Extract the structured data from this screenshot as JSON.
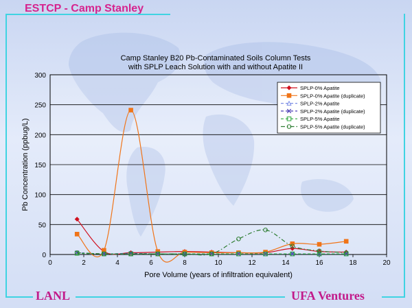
{
  "slide": {
    "header": "ESTCP - Camp Stanley",
    "footer_left": "LANL",
    "footer_right": "UFA Ventures",
    "colors": {
      "accent_text": "#d6238e",
      "frame_line": "#3fd3e2"
    }
  },
  "chart_data": {
    "type": "line",
    "title_line1": "Camp Stanley B20 Pb-Contaminated Soils Column Tests",
    "title_line2": "with SPLP Leach Solution with and without Apatite II",
    "xlabel": "Pore Volume (years of infiltration equivalent)",
    "ylabel": "Pb Concentration (ppbug/L)",
    "xlim": [
      0,
      20
    ],
    "ylim": [
      0,
      300
    ],
    "x_ticks": [
      "0",
      "2",
      "4",
      "6",
      "8",
      "10",
      "12",
      "14",
      "16",
      "18",
      "20"
    ],
    "y_ticks": [
      "0",
      "50",
      "100",
      "150",
      "200",
      "250",
      "300"
    ],
    "grid": "horizontal",
    "legend_position": "top-right",
    "series": [
      {
        "name": "SPLP-0% Apatite",
        "color": "#d0101e",
        "marker": "diamond",
        "dash": "solid",
        "x": [
          1.6,
          3.2,
          4.8,
          6.4,
          8.0,
          9.6,
          11.2,
          12.8,
          14.4,
          16.0,
          17.6
        ],
        "y": [
          59,
          5,
          3,
          4,
          5,
          4,
          3,
          3,
          10,
          5,
          4
        ]
      },
      {
        "name": "SPLP-0% Apatite (duplicate)",
        "color": "#f07418",
        "marker": "square",
        "dash": "solid",
        "x": [
          1.6,
          3.2,
          4.8,
          6.4,
          8.0,
          9.6,
          11.2,
          12.8,
          14.4,
          16.0,
          17.6
        ],
        "y": [
          34,
          7,
          241,
          5,
          4,
          3,
          3,
          4,
          18,
          17,
          22
        ]
      },
      {
        "name": "SPLP-2% Apatite",
        "color": "#7d8ee6",
        "marker": "triangle",
        "dash": "dashed",
        "x": [
          1.6,
          3.2,
          4.8,
          6.4,
          8.0,
          9.6,
          11.2,
          12.8,
          14.4,
          16.0,
          17.6
        ],
        "y": [
          2,
          1,
          1,
          1,
          1,
          1,
          1,
          1,
          1,
          1,
          1
        ]
      },
      {
        "name": "SPLP-2% Apatite (duplicate)",
        "color": "#4b3fb5",
        "marker": "x",
        "dash": "dashed",
        "x": [
          1.6,
          3.2,
          4.8,
          6.4,
          8.0,
          9.6,
          11.2,
          12.8,
          14.4,
          16.0,
          17.6
        ],
        "y": [
          3,
          1,
          2,
          1,
          1,
          1,
          1,
          1,
          1,
          1,
          1
        ]
      },
      {
        "name": "SPLP-5% Apatite",
        "color": "#2aa63a",
        "marker": "square-open",
        "dash": "dashed",
        "x": [
          1.6,
          3.2,
          4.8,
          6.4,
          8.0,
          9.6,
          11.2,
          12.8,
          14.4,
          16.0,
          17.6
        ],
        "y": [
          2,
          1,
          1,
          1,
          1,
          1,
          1,
          1,
          1,
          1,
          1
        ]
      },
      {
        "name": "SPLP-5% Apatite (duplicate)",
        "color": "#2e7d32",
        "marker": "circle-open",
        "dash": "dashdot",
        "x": [
          1.6,
          3.2,
          4.8,
          6.4,
          8.0,
          9.6,
          11.2,
          12.8,
          14.4,
          16.0,
          17.6
        ],
        "y": [
          3,
          1,
          1,
          1,
          1,
          1,
          26,
          41,
          14,
          6,
          3
        ]
      }
    ]
  }
}
